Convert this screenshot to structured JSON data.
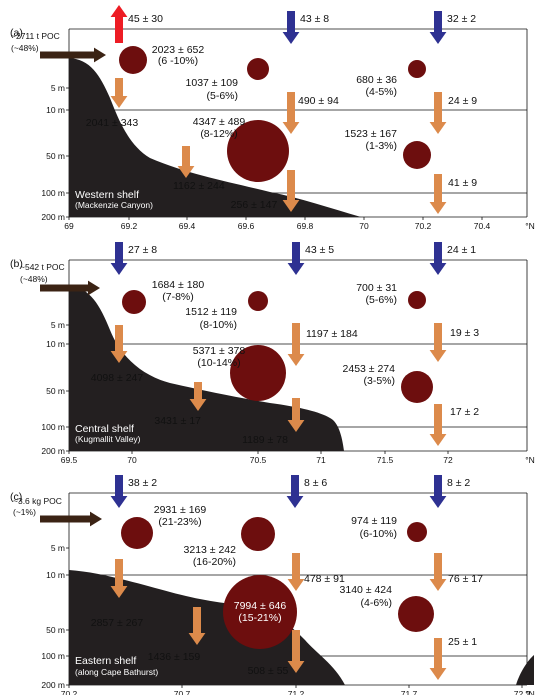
{
  "colors": {
    "poc_brown": "#3b2314",
    "seafloor": "#231f20",
    "red_arrow": "#ed1c24",
    "blue_arrow": "#2e3192",
    "orange_arrow": "#dc8a4b",
    "circle_fill": "#6d0e0e"
  },
  "panels": [
    {
      "label": "(a)",
      "poc_text": [
        "~2711 t POC",
        "(~48%)"
      ],
      "shelf_name": "Western shelf",
      "shelf_sub": "(Mackenzie Canyon)",
      "depth_labels": [
        "5 m",
        "10 m",
        "50 m",
        "100 m",
        "200 m"
      ],
      "x_ticks": [
        "69",
        "69.2",
        "69.4",
        "69.6",
        "69.8",
        "70",
        "70.2",
        "70.4"
      ],
      "x_unit": "°N",
      "top_arrows": [
        {
          "color": "red",
          "label": "45 ± 30"
        },
        {
          "color": "blue",
          "label": "43 ± 8"
        },
        {
          "color": "blue",
          "label": "32 ± 2"
        }
      ],
      "circles": [
        {
          "size_value": 2023,
          "label1": "2023 ± 652",
          "label2": "(6 -10%)"
        },
        {
          "size_value": 1037,
          "label1": "1037 ± 109",
          "label2": "(5-6%)"
        },
        {
          "size_value": 680,
          "label1": "680 ± 36",
          "label2": "(4-5%)"
        },
        {
          "size_value": 4347,
          "label1": "4347 ± 489",
          "label2": "(8-12%)"
        },
        {
          "size_value": 1523,
          "label1": "1523 ± 167",
          "label2": "(1-3%)"
        }
      ],
      "down_arrows": [
        {
          "label": "2041 ± 343"
        },
        {
          "label": "490 ± 94"
        },
        {
          "label": "24 ± 9"
        },
        {
          "label": "1162 ± 244"
        },
        {
          "label": "256 ± 147"
        },
        {
          "label": "41 ± 9"
        }
      ]
    },
    {
      "label": "(b)",
      "poc_text": [
        "~542 t POC",
        "(~48%)"
      ],
      "shelf_name": "Central shelf",
      "shelf_sub": "(Kugmallit Valley)",
      "depth_labels": [
        "5 m",
        "10 m",
        "50 m",
        "100 m",
        "200 m"
      ],
      "x_ticks": [
        "69.5",
        "70",
        "70.5",
        "71",
        "71.5",
        "72"
      ],
      "x_unit": "°N",
      "top_arrows": [
        {
          "color": "blue",
          "label": "27 ± 8"
        },
        {
          "color": "blue",
          "label": "43 ± 5"
        },
        {
          "color": "blue",
          "label": "24 ± 1"
        }
      ],
      "circles": [
        {
          "size_value": 1684,
          "label1": "1684 ± 180",
          "label2": "(7-8%)"
        },
        {
          "size_value": 1512,
          "label1": "1512 ± 119",
          "label2": "(8-10%)"
        },
        {
          "size_value": 700,
          "label1": "700 ± 31",
          "label2": "(5-6%)"
        },
        {
          "size_value": 5371,
          "label1": "5371 ± 378",
          "label2": "(10-14%)"
        },
        {
          "size_value": 2453,
          "label1": "2453 ± 274",
          "label2": "(3-5%)"
        }
      ],
      "down_arrows": [
        {
          "label": "4098 ± 247"
        },
        {
          "label": "1197 ± 184"
        },
        {
          "label": "19 ± 3"
        },
        {
          "label": "3431 ± 17"
        },
        {
          "label": "1189 ± 78"
        },
        {
          "label": "17 ± 2"
        }
      ]
    },
    {
      "label": "(c)",
      "poc_text": [
        "~3.6 kg POC",
        "(~1%)"
      ],
      "shelf_name": "Eastern shelf",
      "shelf_sub": "(along Cape Bathurst)",
      "depth_labels": [
        "5 m",
        "10 m",
        "50 m",
        "100 m",
        "200 m"
      ],
      "x_ticks": [
        "70.2",
        "70.7",
        "71.2",
        "71.7",
        "72.2"
      ],
      "x_unit": "°N",
      "top_arrows": [
        {
          "color": "blue",
          "label": "38 ± 2"
        },
        {
          "color": "blue",
          "label": "8 ± 6"
        },
        {
          "color": "blue",
          "label": "8 ± 2"
        }
      ],
      "circles": [
        {
          "size_value": 2931,
          "label1": "2931 ± 169",
          "label2": "(21-23%)"
        },
        {
          "size_value": 3213,
          "label1": "3213 ± 242",
          "label2": "(16-20%)"
        },
        {
          "size_value": 974,
          "label1": "974 ± 119",
          "label2": "(6-10%)"
        },
        {
          "size_value": 7994,
          "label1": "7994 ± 646",
          "label2": "(15-21%)"
        },
        {
          "size_value": 3140,
          "label1": "3140 ± 424",
          "label2": "(4-6%)"
        }
      ],
      "down_arrows": [
        {
          "label": "2857 ± 267"
        },
        {
          "label": "478 ± 91"
        },
        {
          "label": "76 ± 17"
        },
        {
          "label": "1436 ± 159"
        },
        {
          "label": "508 ± 55"
        },
        {
          "label": "25 ± 1"
        }
      ]
    }
  ]
}
